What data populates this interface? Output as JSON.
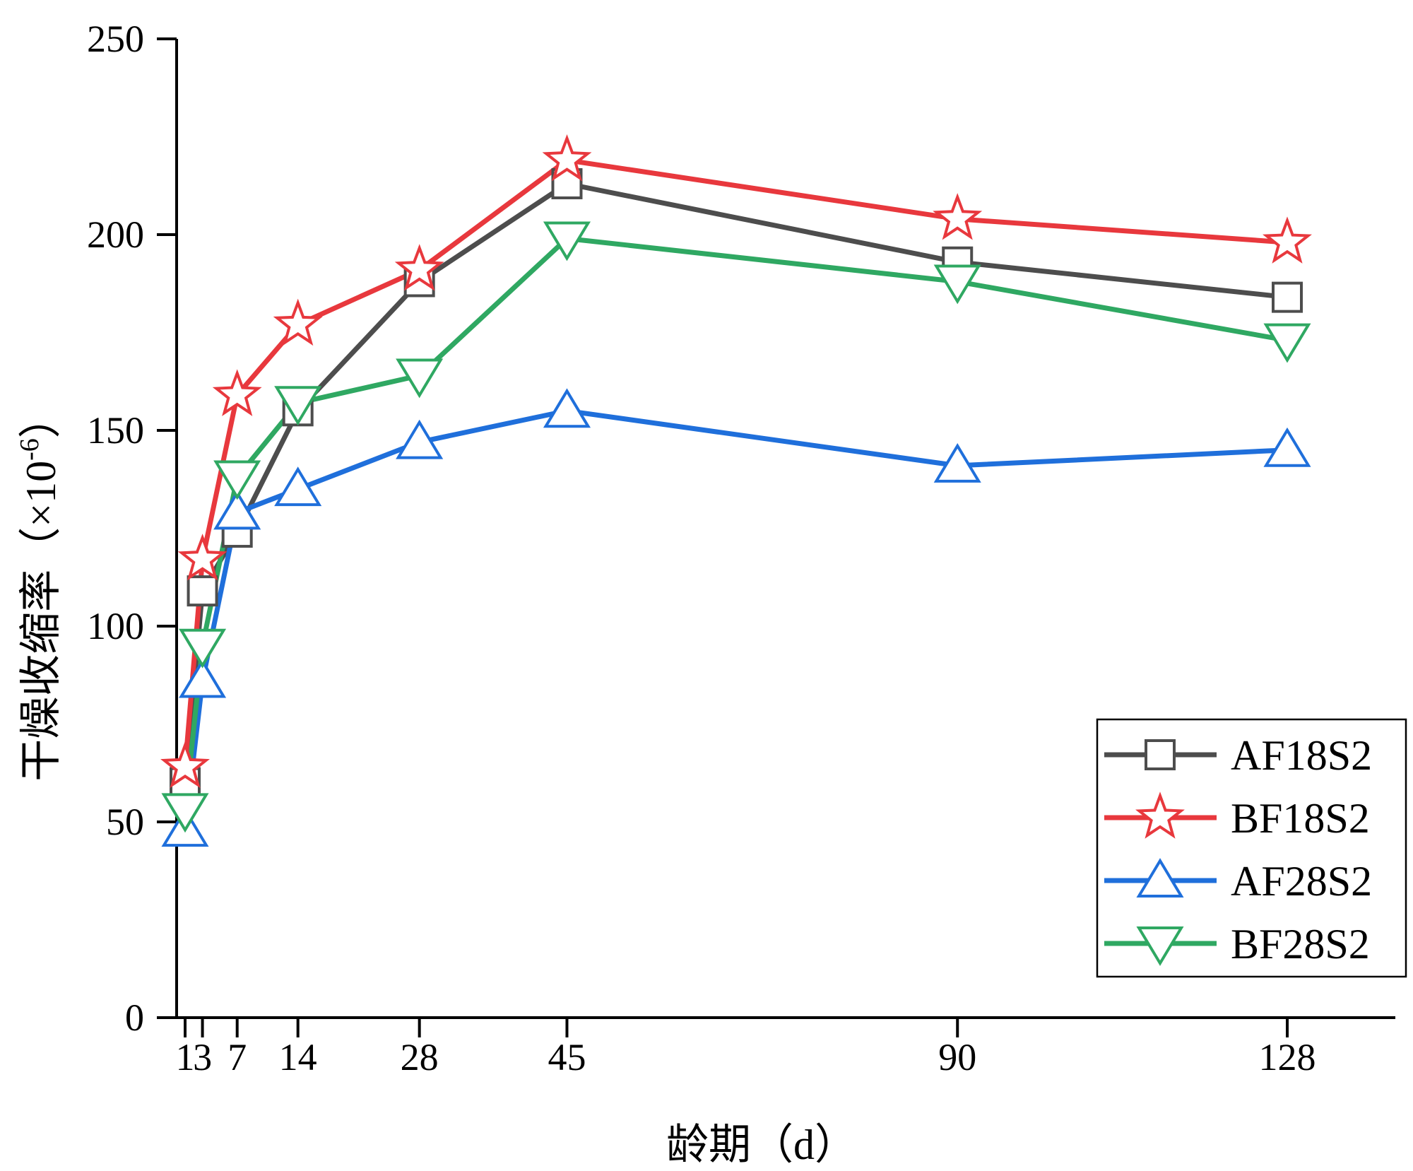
{
  "chart_data": {
    "type": "line",
    "title": "",
    "xlabel": "龄期（d）",
    "ylabel": "干燥收缩率（×10",
    "ylabel_exponent": "-6",
    "ylabel_close": "）",
    "x": [
      1,
      3,
      7,
      14,
      28,
      45,
      90,
      128
    ],
    "xticks": [
      1,
      3,
      7,
      14,
      28,
      45,
      90,
      128
    ],
    "xtick_labels": [
      "1",
      "3",
      "7",
      "14",
      "28",
      "45",
      "90",
      "128"
    ],
    "xlim": [
      0,
      140
    ],
    "ylim": [
      0,
      250
    ],
    "yticks": [
      0,
      50,
      100,
      150,
      200,
      250
    ],
    "ytick_labels": [
      "0",
      "50",
      "100",
      "150",
      "200",
      "250"
    ],
    "grid": false,
    "legend_position": "bottom-right",
    "series": [
      {
        "name": "AF18S2",
        "color": "#4d4d4d",
        "marker": "square",
        "values": [
          60,
          109,
          124,
          155,
          188,
          213,
          193,
          184
        ]
      },
      {
        "name": "BF18S2",
        "color": "#e8383d",
        "marker": "star",
        "values": [
          64,
          117,
          159,
          177,
          191,
          219,
          204,
          198
        ]
      },
      {
        "name": "AF28S2",
        "color": "#1f6fdb",
        "marker": "triangle-up",
        "values": [
          48,
          86,
          129,
          135,
          147,
          155,
          141,
          145
        ]
      },
      {
        "name": "BF28S2",
        "color": "#2fa862",
        "marker": "triangle-down",
        "values": [
          53,
          95,
          138,
          157,
          164,
          199,
          188,
          173
        ]
      }
    ]
  }
}
